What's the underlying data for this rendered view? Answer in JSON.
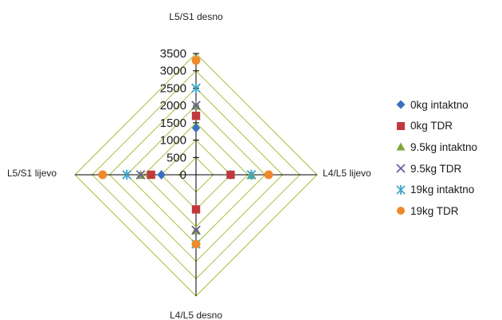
{
  "chart_data": {
    "type": "radar",
    "title": "",
    "axes": [
      "L5/S1 desno",
      "L4/L5 lijevo",
      "L4/L5 desno",
      "L5/S1 lijevo"
    ],
    "radial_ticks": [
      "0",
      "500",
      "1000",
      "1500",
      "2000",
      "2500",
      "3000",
      "3500"
    ],
    "rlim": [
      0,
      3500
    ],
    "grid": true,
    "legend_position": "right",
    "colors": {
      "grid": "#a8bf3e",
      "axis": "#000000"
    },
    "series": [
      {
        "name": "0kg  intaktno",
        "marker": "diamond",
        "color": "#3a6fc2",
        "values": [
          1350,
          1000,
          1000,
          1000
        ]
      },
      {
        "name": "0kg TDR",
        "marker": "square",
        "color": "#c0393d",
        "values": [
          1700,
          1000,
          1000,
          1300
        ]
      },
      {
        "name": "9.5kg  intaktno",
        "marker": "triangle",
        "color": "#7fa83a",
        "values": [
          2000,
          1600,
          1600,
          1600
        ]
      },
      {
        "name": "9.5kg TDR",
        "marker": "x",
        "color": "#6c55a3",
        "values": [
          2000,
          1600,
          1600,
          1600
        ]
      },
      {
        "name": "19kg  intaktno",
        "marker": "star",
        "color": "#3fa7c9",
        "values": [
          2500,
          1600,
          2000,
          2000
        ]
      },
      {
        "name": "19kg TDR",
        "marker": "circle",
        "color": "#ef8a2c",
        "values": [
          3300,
          2100,
          2000,
          2700
        ]
      }
    ]
  }
}
